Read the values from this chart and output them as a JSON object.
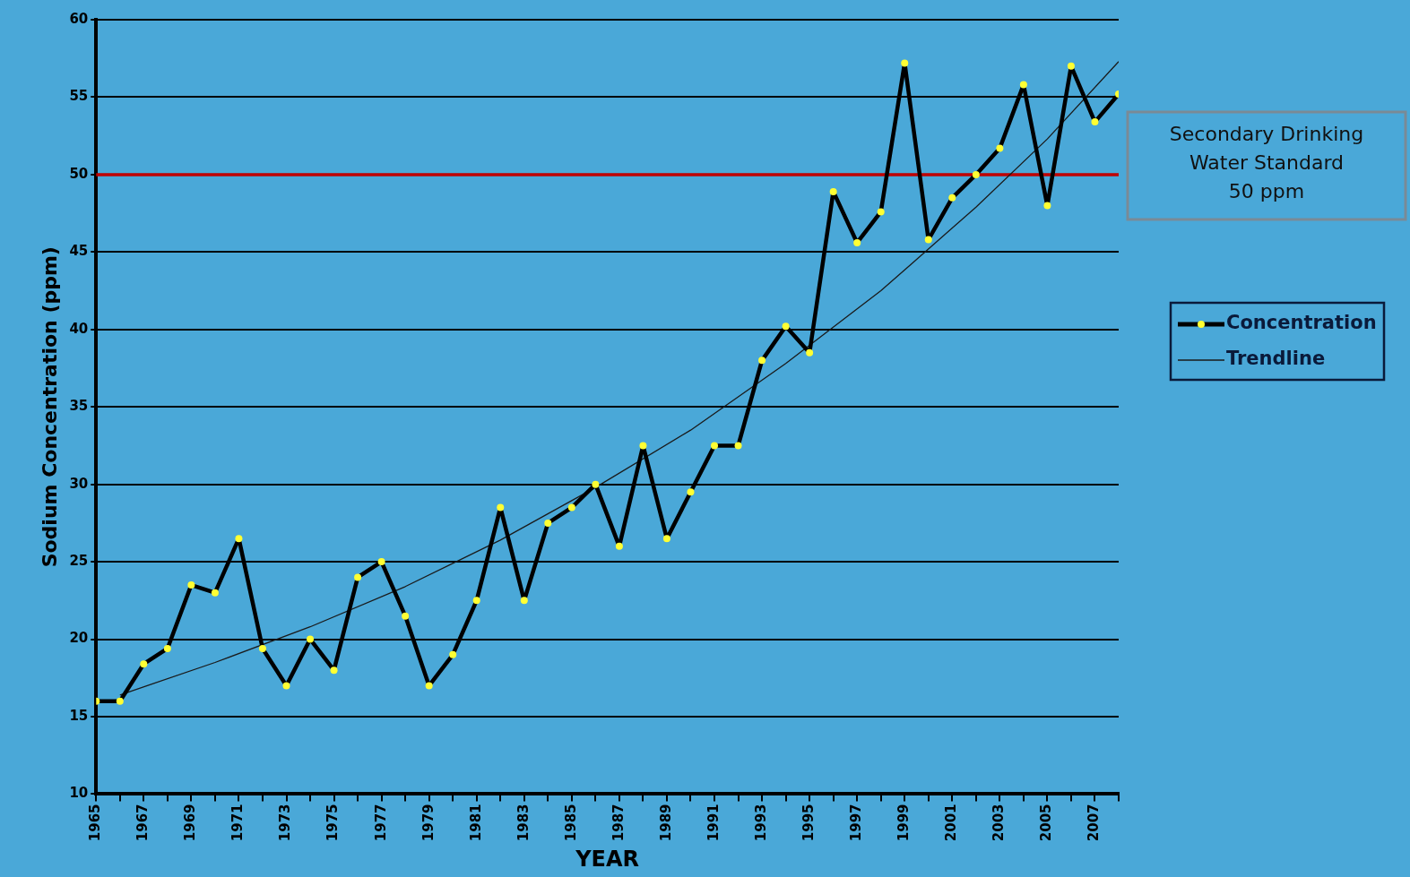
{
  "chart_data": {
    "type": "line",
    "xlabel": "YEAR",
    "ylabel": "Sodium Concentration (ppm)",
    "x": [
      1965,
      1966,
      1967,
      1968,
      1969,
      1970,
      1971,
      1972,
      1973,
      1974,
      1975,
      1976,
      1977,
      1978,
      1979,
      1980,
      1981,
      1982,
      1983,
      1984,
      1985,
      1986,
      1987,
      1988,
      1989,
      1990,
      1991,
      1992,
      1993,
      1994,
      1995,
      1996,
      1997,
      1998,
      1999,
      2000,
      2001,
      2002,
      2003,
      2004,
      2005,
      2006,
      2007,
      2008
    ],
    "series": [
      {
        "name": "Concentration",
        "color": "#000000",
        "marker": "circle",
        "values": [
          16,
          16,
          18.4,
          19.4,
          23.5,
          23,
          26.5,
          19.4,
          17,
          20,
          18,
          24,
          25,
          21.5,
          17,
          19,
          22.5,
          28.5,
          22.5,
          27.5,
          28.5,
          30,
          26,
          32.5,
          26.5,
          29.5,
          32.5,
          32.5,
          38,
          40.2,
          38.5,
          48.9,
          45.6,
          47.6,
          57.2,
          45.8,
          48.5,
          50,
          51.7,
          55.8,
          48,
          57,
          53.4,
          55.2
        ]
      },
      {
        "name": "Trendline",
        "color": "#1a1a1a",
        "marker": "none",
        "x": [
          1966,
          1970,
          1974,
          1978,
          1982,
          1986,
          1990,
          1994,
          1998,
          2002,
          2005,
          2008
        ],
        "values": [
          16.4,
          18.5,
          20.8,
          23.4,
          26.4,
          29.8,
          33.5,
          37.8,
          42.5,
          47.9,
          52.3,
          57.3
        ]
      }
    ],
    "xlim": [
      1965,
      2008
    ],
    "xticks": [
      1965,
      {
        "value": 1966,
        "label": null
      },
      1967,
      {
        "value": 1968,
        "label": null
      },
      1969,
      {
        "value": 1970,
        "label": null
      },
      1971,
      {
        "value": 1972,
        "label": null
      },
      1973,
      {
        "value": 1974,
        "label": null
      },
      1975,
      {
        "value": 1976,
        "label": null
      },
      1977,
      {
        "value": 1978,
        "label": null
      },
      1979,
      {
        "value": 1980,
        "label": null
      },
      1981,
      {
        "value": 1982,
        "label": null
      },
      1983,
      {
        "value": 1984,
        "label": null
      },
      1985,
      {
        "value": 1986,
        "label": null
      },
      1987,
      {
        "value": 1988,
        "label": null
      },
      1989,
      {
        "value": 1990,
        "label": null
      },
      1991,
      {
        "value": 1992,
        "label": null
      },
      1993,
      {
        "value": 1994,
        "label": null
      },
      1995,
      {
        "value": 1996,
        "label": null
      },
      1997,
      {
        "value": 1998,
        "label": null
      },
      1999,
      {
        "value": 2000,
        "label": null
      },
      2001,
      {
        "value": 2002,
        "label": null
      },
      2003,
      {
        "value": 2004,
        "label": null
      },
      2005,
      {
        "value": 2006,
        "label": null
      },
      2007,
      {
        "value": 2008,
        "label": null
      }
    ],
    "ylim": [
      10,
      60
    ],
    "yticks": [
      10,
      15,
      20,
      25,
      30,
      35,
      40,
      45,
      50,
      55,
      60
    ],
    "grid": "y",
    "legend": "right",
    "ref_lines": [
      {
        "axis": "y",
        "value": 50,
        "label": "Secondary Drinking\nWater Standard\n50 ppm",
        "color": "#c00000"
      }
    ]
  }
}
